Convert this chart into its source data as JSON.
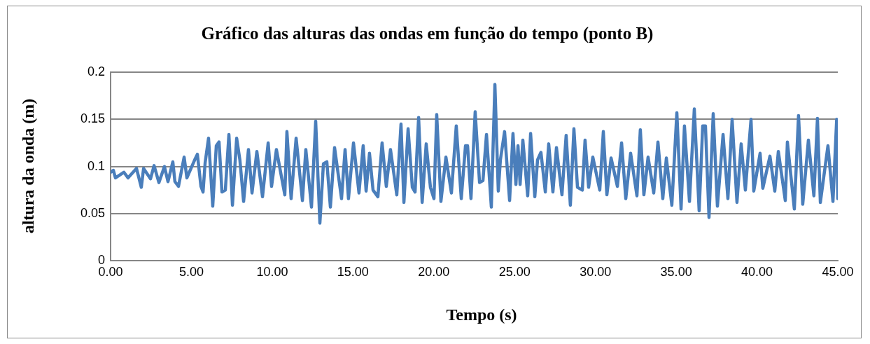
{
  "chart_data": {
    "type": "line",
    "title": "Gráfico das alturas das ondas em função do tempo (ponto B)",
    "xlabel": "Tempo (s)",
    "ylabel": "altura da onda (m)",
    "xlim": [
      0,
      45
    ],
    "ylim": [
      0,
      0.2
    ],
    "xticks": [
      {
        "value": 0,
        "label": "0.00"
      },
      {
        "value": 5,
        "label": "5.00"
      },
      {
        "value": 10,
        "label": "10.00"
      },
      {
        "value": 15,
        "label": "15.00"
      },
      {
        "value": 20,
        "label": "20.00"
      },
      {
        "value": 25,
        "label": "25.00"
      },
      {
        "value": 30,
        "label": "30.00"
      },
      {
        "value": 35,
        "label": "35.00"
      },
      {
        "value": 40,
        "label": "40.00"
      },
      {
        "value": 45,
        "label": "45.00"
      }
    ],
    "yticks": [
      0,
      0.05,
      0.1,
      0.15,
      0.2
    ],
    "grid": "y",
    "legend": false,
    "marker": "none",
    "line_style": "solid",
    "series": [
      {
        "color": "#4a7ebb",
        "x": [
          0,
          0.17,
          0.3,
          0.82,
          1.08,
          1.6,
          1.9,
          2.04,
          2.47,
          2.69,
          2.99,
          3.33,
          3.55,
          3.85,
          3.98,
          4.2,
          4.55,
          4.72,
          5.2,
          5.37,
          5.59,
          5.72,
          5.85,
          6.06,
          6.32,
          6.54,
          6.71,
          6.89,
          7.1,
          7.32,
          7.54,
          7.8,
          8.0,
          8.23,
          8.53,
          8.75,
          9.05,
          9.4,
          9.75,
          9.96,
          10.26,
          10.78,
          10.91,
          11.17,
          11.48,
          11.87,
          12.08,
          12.43,
          12.69,
          12.95,
          13.17,
          13.38,
          13.6,
          13.86,
          14.29,
          14.51,
          14.72,
          15.03,
          15.37,
          15.63,
          15.81,
          16.02,
          16.24,
          16.54,
          16.8,
          17.06,
          17.32,
          17.71,
          17.97,
          18.15,
          18.41,
          18.67,
          18.84,
          19.06,
          19.28,
          19.53,
          19.79,
          20.01,
          20.18,
          20.44,
          20.75,
          21.09,
          21.39,
          21.7,
          21.96,
          22.09,
          22.3,
          22.56,
          22.83,
          23.04,
          23.26,
          23.56,
          23.78,
          23.99,
          24.12,
          24.38,
          24.69,
          24.9,
          25.08,
          25.21,
          25.34,
          25.51,
          25.81,
          25.99,
          26.25,
          26.42,
          26.63,
          26.9,
          27.11,
          27.37,
          27.59,
          27.93,
          28.19,
          28.45,
          28.67,
          28.89,
          29.19,
          29.36,
          29.58,
          29.84,
          30.27,
          30.49,
          30.71,
          30.97,
          31.36,
          31.62,
          31.88,
          32.18,
          32.57,
          32.78,
          33.0,
          33.26,
          33.61,
          33.87,
          34.17,
          34.39,
          34.73,
          35.04,
          35.3,
          35.51,
          35.82,
          36.12,
          36.42,
          36.64,
          36.81,
          37.03,
          37.29,
          37.55,
          37.9,
          38.2,
          38.46,
          38.76,
          39.02,
          39.28,
          39.63,
          39.8,
          40.19,
          40.36,
          40.8,
          41.1,
          41.32,
          41.75,
          41.88,
          42.31,
          42.57,
          42.83,
          43.18,
          43.52,
          43.74,
          43.92,
          44.39,
          44.7,
          44.93,
          45.0
        ],
        "values": [
          0.094,
          0.096,
          0.088,
          0.094,
          0.088,
          0.098,
          0.078,
          0.098,
          0.087,
          0.101,
          0.083,
          0.1,
          0.084,
          0.105,
          0.084,
          0.079,
          0.11,
          0.088,
          0.107,
          0.113,
          0.079,
          0.073,
          0.104,
          0.13,
          0.058,
          0.122,
          0.126,
          0.073,
          0.075,
          0.134,
          0.059,
          0.13,
          0.107,
          0.063,
          0.118,
          0.072,
          0.116,
          0.068,
          0.125,
          0.079,
          0.118,
          0.07,
          0.137,
          0.066,
          0.13,
          0.064,
          0.118,
          0.057,
          0.148,
          0.04,
          0.103,
          0.105,
          0.057,
          0.12,
          0.066,
          0.118,
          0.066,
          0.125,
          0.072,
          0.122,
          0.074,
          0.114,
          0.075,
          0.068,
          0.125,
          0.079,
          0.118,
          0.07,
          0.145,
          0.062,
          0.14,
          0.078,
          0.073,
          0.152,
          0.062,
          0.124,
          0.078,
          0.066,
          0.155,
          0.063,
          0.11,
          0.072,
          0.143,
          0.066,
          0.122,
          0.122,
          0.066,
          0.158,
          0.083,
          0.085,
          0.134,
          0.057,
          0.187,
          0.074,
          0.107,
          0.137,
          0.064,
          0.135,
          0.081,
          0.122,
          0.081,
          0.128,
          0.069,
          0.135,
          0.068,
          0.107,
          0.115,
          0.073,
          0.124,
          0.073,
          0.12,
          0.07,
          0.133,
          0.059,
          0.14,
          0.078,
          0.075,
          0.128,
          0.078,
          0.11,
          0.075,
          0.137,
          0.07,
          0.109,
          0.079,
          0.125,
          0.066,
          0.114,
          0.069,
          0.139,
          0.07,
          0.11,
          0.072,
          0.126,
          0.066,
          0.109,
          0.059,
          0.157,
          0.055,
          0.143,
          0.063,
          0.161,
          0.053,
          0.143,
          0.143,
          0.046,
          0.156,
          0.058,
          0.134,
          0.066,
          0.15,
          0.062,
          0.124,
          0.075,
          0.15,
          0.074,
          0.114,
          0.077,
          0.111,
          0.074,
          0.116,
          0.064,
          0.126,
          0.055,
          0.154,
          0.06,
          0.128,
          0.069,
          0.151,
          0.062,
          0.122,
          0.063,
          0.15,
          0.066
        ]
      }
    ]
  }
}
